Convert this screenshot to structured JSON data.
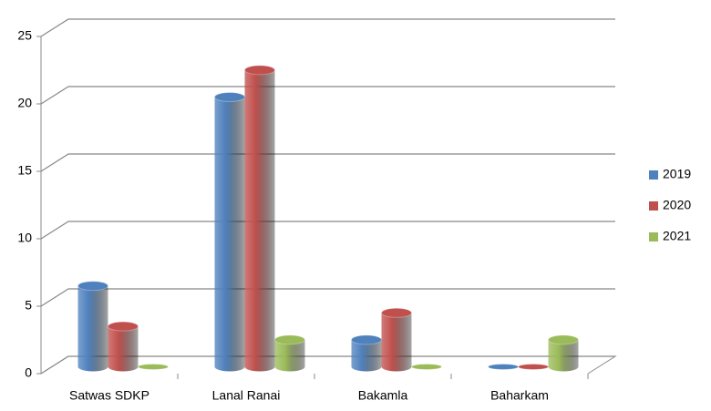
{
  "chart_data": {
    "type": "bar",
    "categories": [
      "Satwas SDKP",
      "Lanal Ranai",
      "Bakamla",
      "Baharkam"
    ],
    "series": [
      {
        "name": "2019",
        "color": "#4f81bd",
        "values": [
          6,
          20,
          2,
          0
        ]
      },
      {
        "name": "2020",
        "color": "#c0504d",
        "values": [
          3,
          22,
          4,
          0
        ]
      },
      {
        "name": "2021",
        "color": "#9bbb59",
        "values": [
          0,
          2,
          0,
          2
        ]
      }
    ],
    "ylim": [
      0,
      25
    ],
    "yticks": [
      0,
      5,
      10,
      15,
      20,
      25
    ],
    "grid": true,
    "legend": "right"
  }
}
